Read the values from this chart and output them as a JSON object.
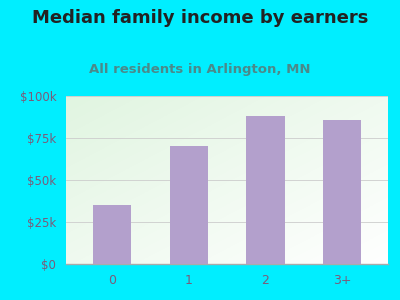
{
  "title": "Median family income by earners",
  "subtitle": "All residents in Arlington, MN",
  "categories": [
    "0",
    "1",
    "2",
    "3+"
  ],
  "values": [
    35000,
    70000,
    88000,
    86000
  ],
  "bar_color": "#b3a0cc",
  "background_outer": "#00eeff",
  "title_color": "#222222",
  "subtitle_color": "#4a8a8a",
  "tick_label_color": "#7a5c7a",
  "ylim": [
    0,
    100000
  ],
  "yticks": [
    0,
    25000,
    50000,
    75000,
    100000
  ],
  "ytick_labels": [
    "$0",
    "$25k",
    "$50k",
    "$75k",
    "$100k"
  ],
  "title_fontsize": 13,
  "subtitle_fontsize": 9.5
}
